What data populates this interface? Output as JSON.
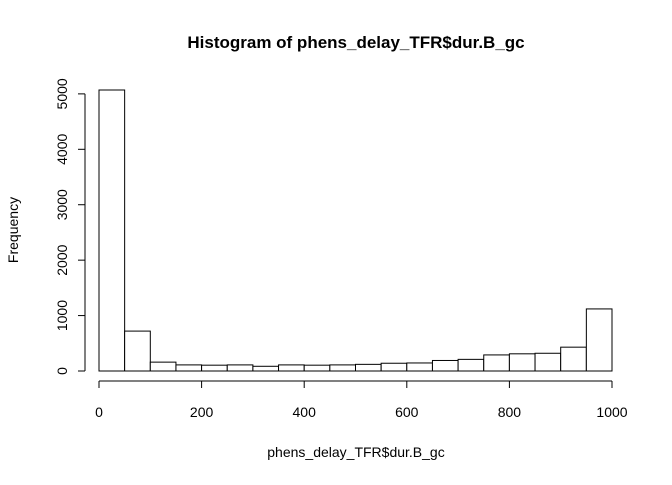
{
  "chart_data": {
    "type": "bar",
    "title": "Histogram of phens_delay_TFR$dur.B_gc",
    "xlabel": "phens_delay_TFR$dur.B_gc",
    "ylabel": "Frequency",
    "bin_edges": [
      0,
      50,
      100,
      150,
      200,
      250,
      300,
      350,
      400,
      450,
      500,
      550,
      600,
      650,
      700,
      750,
      800,
      850,
      900,
      950,
      1000
    ],
    "values": [
      5070,
      720,
      160,
      110,
      105,
      110,
      85,
      110,
      105,
      110,
      120,
      140,
      145,
      190,
      210,
      290,
      310,
      320,
      430,
      1120
    ],
    "xlim": [
      0,
      1000
    ],
    "ylim": [
      0,
      5070
    ],
    "x_ticks": [
      0,
      200,
      400,
      600,
      800,
      1000
    ],
    "y_ticks": [
      0,
      1000,
      2000,
      3000,
      4000,
      5000
    ],
    "grid": false,
    "colors": {
      "bar_fill": "#ffffff",
      "bar_stroke": "#000000"
    }
  }
}
